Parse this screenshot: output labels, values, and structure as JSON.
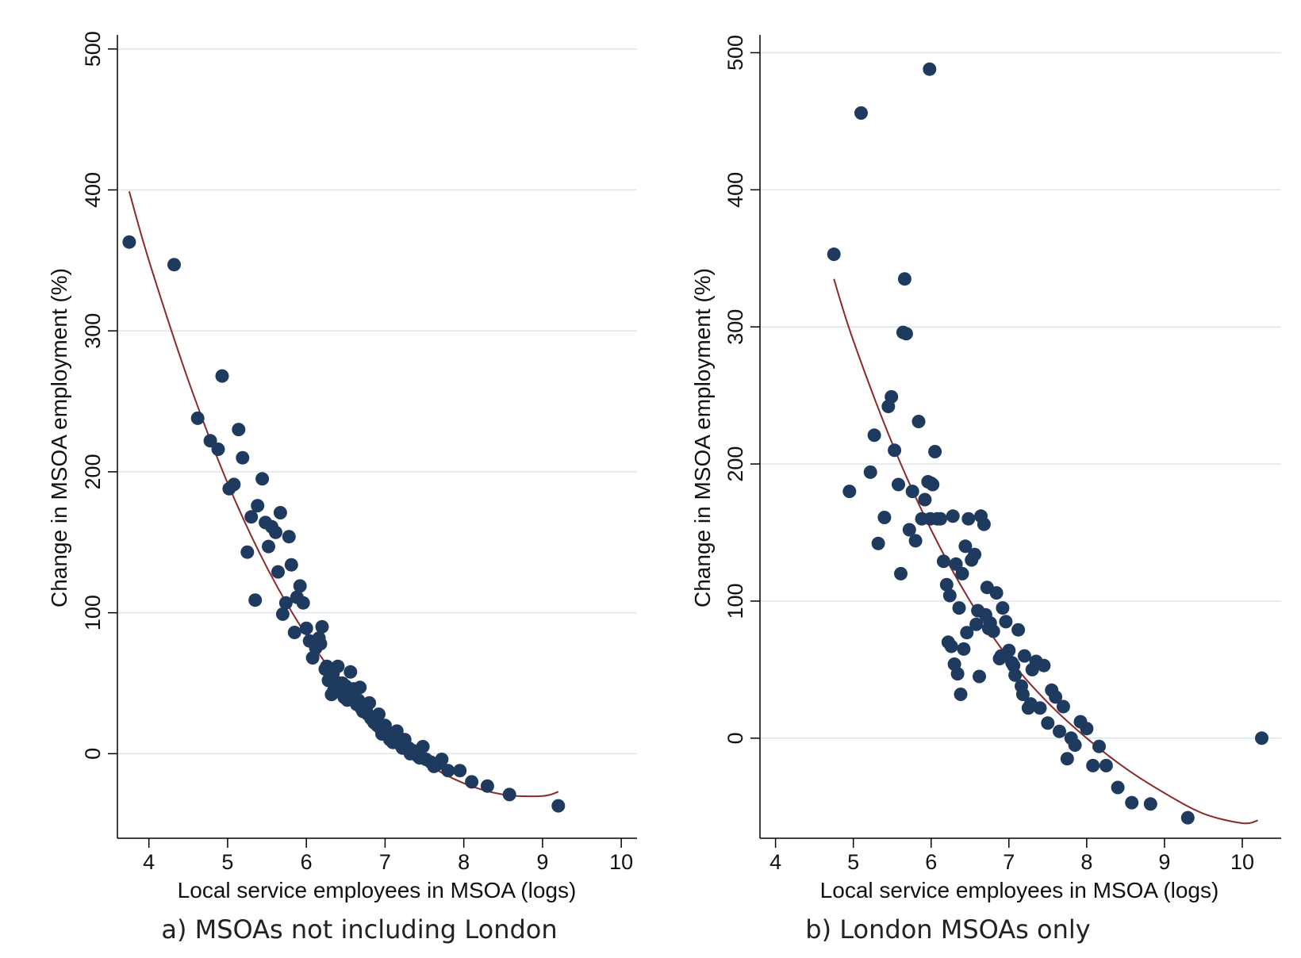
{
  "colors": {
    "point": "#1f3a5f",
    "fit_line": "#8b2a2a",
    "axis": "#000000",
    "grid": "#dde6ea",
    "background": "#ffffff"
  },
  "chart_data": [
    {
      "type": "scatter",
      "caption": "a) MSOAs not including London",
      "xlabel": "Local service employees in MSOA (logs)",
      "ylabel": "Change in MSOA employment (%)",
      "xlim": [
        3.6,
        10.2
      ],
      "ylim": [
        -60,
        510
      ],
      "xticks": [
        4,
        5,
        6,
        7,
        8,
        9,
        10
      ],
      "yticks": [
        0,
        100,
        200,
        300,
        400,
        500
      ],
      "grid": true,
      "grid_axis": "y",
      "series": [
        {
          "kind": "points",
          "x": [
            3.75,
            4.32,
            4.62,
            4.78,
            4.88,
            4.93,
            5.02,
            5.08,
            5.14,
            5.19,
            5.25,
            5.3,
            5.35,
            5.38,
            5.44,
            5.48,
            5.52,
            5.56,
            5.61,
            5.64,
            5.67,
            5.7,
            5.74,
            5.78,
            5.81,
            5.85,
            5.88,
            5.92,
            5.96,
            6.0,
            6.04,
            6.08,
            6.12,
            6.16,
            6.2,
            6.24,
            6.28,
            6.32,
            6.36,
            6.4,
            6.44,
            6.48,
            6.52,
            6.56,
            6.6,
            6.64,
            6.68,
            6.72,
            6.76,
            6.8,
            6.84,
            6.88,
            6.92,
            6.96,
            7.0,
            7.05,
            7.1,
            7.15,
            7.2,
            7.25,
            7.3,
            7.36,
            7.42,
            7.48,
            7.52,
            7.58,
            7.65,
            7.72,
            7.8,
            7.95,
            8.1,
            8.3,
            8.58,
            9.2,
            6.3,
            6.35,
            6.42,
            6.5,
            6.58,
            6.66,
            6.74,
            6.82,
            6.9,
            6.98,
            7.06,
            6.18,
            6.26,
            6.34,
            6.46,
            6.54,
            6.62,
            6.7,
            6.78,
            6.86,
            6.94,
            7.02,
            7.12,
            7.22,
            7.32,
            7.44,
            7.62
          ],
          "y": [
            363,
            347,
            238,
            222,
            216,
            268,
            188,
            191,
            230,
            210,
            143,
            168,
            109,
            176,
            195,
            164,
            147,
            161,
            157,
            129,
            171,
            99,
            107,
            154,
            134,
            86,
            111,
            119,
            107,
            89,
            80,
            68,
            75,
            82,
            90,
            60,
            52,
            42,
            48,
            62,
            44,
            40,
            38,
            58,
            46,
            35,
            47,
            30,
            32,
            36,
            24,
            22,
            28,
            14,
            20,
            12,
            8,
            16,
            6,
            10,
            4,
            2,
            -2,
            5,
            -4,
            -6,
            -8,
            -4,
            -12,
            -12,
            -20,
            -23,
            -29,
            -37,
            55,
            45,
            50,
            48,
            42,
            38,
            33,
            25,
            20,
            15,
            10,
            78,
            62,
            57,
            50,
            44,
            40,
            32,
            28,
            22,
            18,
            14,
            9,
            4,
            0,
            -3,
            -9
          ]
        },
        {
          "kind": "fit",
          "x": [
            3.75,
            4.0,
            4.5,
            5.0,
            5.5,
            6.0,
            6.5,
            7.0,
            7.5,
            8.0,
            8.5,
            9.0,
            9.2
          ],
          "y": [
            399,
            350,
            265,
            192,
            132,
            84,
            46,
            17,
            -6,
            -21,
            -29,
            -30,
            -27
          ]
        }
      ]
    },
    {
      "type": "scatter",
      "caption": "b) London MSOAs only",
      "xlabel": "Local service employees in MSOA (logs)",
      "ylabel": "Change in MSOA employment (%)",
      "xlim": [
        3.8,
        10.5
      ],
      "ylim": [
        -73,
        513
      ],
      "xticks": [
        4,
        5,
        6,
        7,
        8,
        9,
        10
      ],
      "yticks": [
        0,
        100,
        200,
        300,
        400,
        500
      ],
      "grid": true,
      "grid_axis": "y",
      "series": [
        {
          "kind": "points",
          "x": [
            4.75,
            4.95,
            5.1,
            5.22,
            5.27,
            5.32,
            5.4,
            5.45,
            5.49,
            5.53,
            5.58,
            5.61,
            5.64,
            5.66,
            5.68,
            5.72,
            5.76,
            5.8,
            5.84,
            5.88,
            5.92,
            5.96,
            5.98,
            6.02,
            6.05,
            6.08,
            6.12,
            6.16,
            6.2,
            6.24,
            6.28,
            6.32,
            6.36,
            6.4,
            6.44,
            6.48,
            6.52,
            6.56,
            6.6,
            6.64,
            6.68,
            6.72,
            6.76,
            6.8,
            6.84,
            6.88,
            6.92,
            6.96,
            7.0,
            7.04,
            7.08,
            7.12,
            7.16,
            7.2,
            7.25,
            7.3,
            7.35,
            7.4,
            7.45,
            7.5,
            7.55,
            7.6,
            7.65,
            7.7,
            7.75,
            7.8,
            7.85,
            7.92,
            8.0,
            8.08,
            8.16,
            8.25,
            8.4,
            8.58,
            8.82,
            9.3,
            10.25,
            6.22,
            6.26,
            6.3,
            6.34,
            6.38,
            6.42,
            6.46,
            6.58,
            6.62,
            6.7,
            6.74,
            6.9,
            7.06,
            7.18,
            7.28,
            5.99,
            6.0
          ],
          "y": [
            353,
            180,
            456,
            194,
            221,
            142,
            161,
            242,
            249,
            210,
            185,
            120,
            296,
            335,
            295,
            152,
            180,
            144,
            231,
            160,
            174,
            187,
            488,
            185,
            209,
            160,
            160,
            129,
            112,
            104,
            162,
            127,
            95,
            120,
            140,
            160,
            130,
            134,
            93,
            162,
            156,
            110,
            84,
            78,
            106,
            58,
            95,
            85,
            64,
            55,
            46,
            79,
            38,
            60,
            22,
            50,
            56,
            22,
            53,
            11,
            35,
            30,
            5,
            23,
            -15,
            0,
            -5,
            12,
            7,
            -20,
            -6,
            -20,
            -36,
            -47,
            -48,
            -58,
            0,
            70,
            67,
            54,
            47,
            32,
            65,
            77,
            83,
            45,
            90,
            80,
            60,
            53,
            32,
            25,
            160,
            186
          ]
        },
        {
          "kind": "fit",
          "x": [
            4.75,
            5.0,
            5.5,
            6.0,
            6.5,
            7.0,
            7.5,
            8.0,
            8.5,
            9.0,
            9.5,
            10.0,
            10.2
          ],
          "y": [
            335,
            290,
            215,
            152,
            100,
            58,
            26,
            0,
            -22,
            -40,
            -55,
            -62,
            -60
          ]
        }
      ]
    }
  ]
}
